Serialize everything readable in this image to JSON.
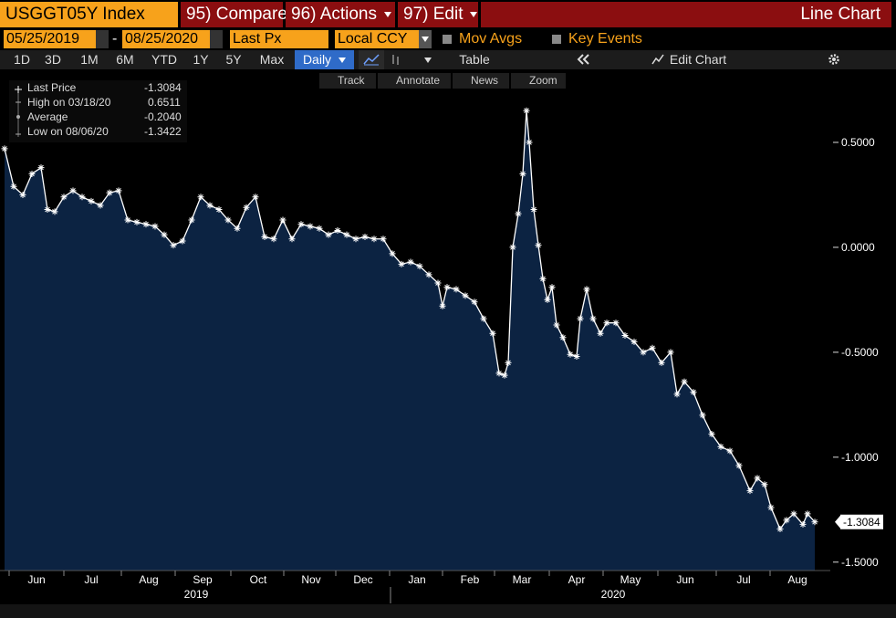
{
  "header": {
    "ticker": "USGGT05Y Index",
    "compare": "95) Compare",
    "actions": "96) Actions",
    "edit": "97) Edit",
    "chart_type": "Line Chart"
  },
  "controls": {
    "start_date": "05/25/2019",
    "dash": "-",
    "end_date": "08/25/2020",
    "field": "Last Px",
    "currency": "Local CCY",
    "mov_avgs": "Mov Avgs",
    "key_events": "Key Events"
  },
  "periods": [
    "1D",
    "3D",
    "1M",
    "6M",
    "YTD",
    "1Y",
    "5Y",
    "Max"
  ],
  "frequency": "Daily",
  "table": "Table",
  "edit_chart": "Edit Chart",
  "tools": [
    "Track",
    "Annotate",
    "News",
    "Zoom"
  ],
  "chart_data": {
    "type": "line",
    "color": "#ffffff",
    "area_color": "#0c2342",
    "stats": [
      {
        "label": "Last Price",
        "value": "-1.3084"
      },
      {
        "label": "High on 03/18/20",
        "value": "0.6511"
      },
      {
        "label": "Average",
        "value": "-0.2040"
      },
      {
        "label": "Low on 08/06/20",
        "value": "-1.3422"
      }
    ],
    "last_value_label": "-1.3084",
    "x": [
      5,
      15,
      25,
      35,
      45,
      52,
      60,
      70,
      80,
      90,
      100,
      110,
      120,
      130,
      140,
      150,
      160,
      170,
      180,
      190,
      200,
      210,
      220,
      230,
      240,
      250,
      260,
      270,
      280,
      290,
      300,
      310,
      320,
      330,
      340,
      350,
      360,
      370,
      380,
      390,
      400,
      410,
      420,
      430,
      440,
      450,
      460,
      470,
      480,
      485,
      490,
      500,
      510,
      520,
      530,
      540,
      547,
      553,
      557,
      562,
      568,
      573,
      577,
      580,
      585,
      590,
      595,
      600,
      605,
      610,
      617,
      625,
      632,
      636,
      643,
      650,
      658,
      665,
      675,
      685,
      695,
      705,
      715,
      725,
      735,
      742,
      750,
      760,
      770,
      780,
      790,
      800,
      810,
      822,
      830,
      838,
      845,
      855,
      862,
      870,
      880,
      885,
      893
    ],
    "values": [
      0.47,
      0.29,
      0.25,
      0.35,
      0.38,
      0.18,
      0.17,
      0.24,
      0.27,
      0.24,
      0.22,
      0.2,
      0.26,
      0.27,
      0.13,
      0.12,
      0.11,
      0.1,
      0.06,
      0.01,
      0.03,
      0.13,
      0.24,
      0.2,
      0.18,
      0.13,
      0.09,
      0.19,
      0.24,
      0.05,
      0.04,
      0.13,
      0.04,
      0.11,
      0.1,
      0.09,
      0.06,
      0.08,
      0.06,
      0.04,
      0.05,
      0.04,
      0.04,
      -0.03,
      -0.08,
      -0.07,
      -0.09,
      -0.13,
      -0.17,
      -0.28,
      -0.19,
      -0.2,
      -0.23,
      -0.26,
      -0.34,
      -0.41,
      -0.6,
      -0.61,
      -0.55,
      0.0,
      0.16,
      0.35,
      0.6511,
      0.5,
      0.18,
      0.01,
      -0.15,
      -0.25,
      -0.19,
      -0.37,
      -0.43,
      -0.51,
      -0.52,
      -0.34,
      -0.2,
      -0.34,
      -0.41,
      -0.36,
      -0.36,
      -0.42,
      -0.45,
      -0.5,
      -0.48,
      -0.55,
      -0.5,
      -0.7,
      -0.64,
      -0.69,
      -0.8,
      -0.89,
      -0.95,
      -0.97,
      -1.04,
      -1.16,
      -1.1,
      -1.13,
      -1.24,
      -1.3422,
      -1.3,
      -1.27,
      -1.32,
      -1.27,
      -1.3084
    ],
    "xlim": [
      0,
      910
    ],
    "xticks": [
      {
        "value": 40,
        "label": "Jun"
      },
      {
        "value": 100,
        "label": "Jul"
      },
      {
        "value": 163,
        "label": "Aug"
      },
      {
        "value": 222,
        "label": "Sep"
      },
      {
        "value": 283,
        "label": "Oct"
      },
      {
        "value": 341,
        "label": "Nov"
      },
      {
        "value": 398,
        "label": "Dec"
      },
      {
        "value": 457,
        "label": "Jan"
      },
      {
        "value": 515,
        "label": "Feb"
      },
      {
        "value": 572,
        "label": "Mar"
      },
      {
        "value": 632,
        "label": "Apr"
      },
      {
        "value": 691,
        "label": "May"
      },
      {
        "value": 751,
        "label": "Jun"
      },
      {
        "value": 815,
        "label": "Jul"
      },
      {
        "value": 874,
        "label": "Aug"
      }
    ],
    "year_labels": [
      {
        "value": 215,
        "label": "2019"
      },
      {
        "value": 672,
        "label": "2020"
      }
    ],
    "year_divider": 428,
    "ylim": [
      -1.54,
      0.75
    ],
    "yticks": [
      {
        "value": 0.5,
        "label": "0.5000"
      },
      {
        "value": 0,
        "label": "0.0000"
      },
      {
        "value": -0.5,
        "label": "-0.5000"
      },
      {
        "value": -1,
        "label": "-1.0000"
      },
      {
        "value": -1.5,
        "label": "-1.5000"
      }
    ]
  }
}
